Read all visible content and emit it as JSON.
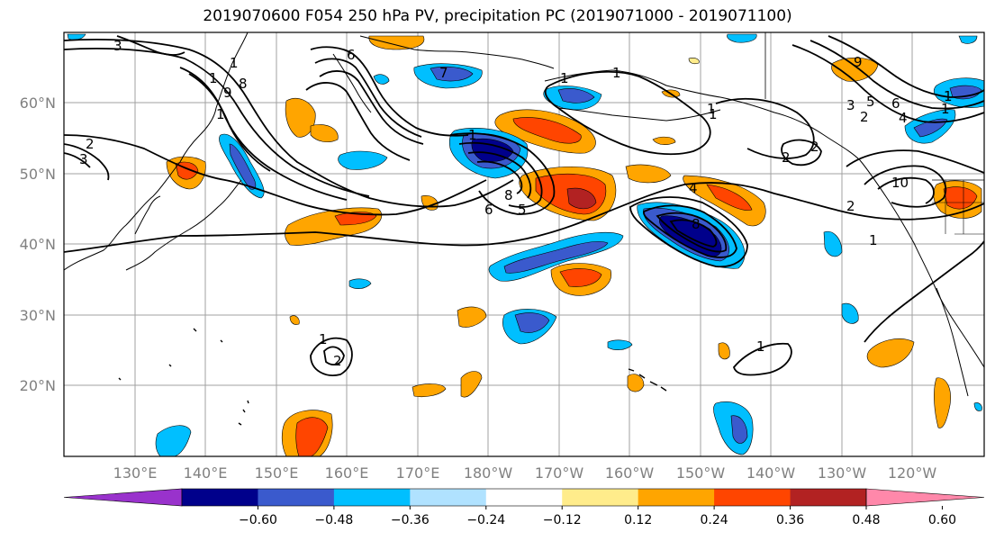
{
  "title": "2019070600 F054 250 hPa PV, precipitation PC (2019071000 - 2019071100)",
  "lat_labels": [
    "60°N",
    "50°N",
    "40°N",
    "30°N",
    "20°N"
  ],
  "lon_labels": [
    "130°E",
    "140°E",
    "150°E",
    "160°E",
    "170°E",
    "180°W",
    "170°W",
    "160°W",
    "150°W",
    "140°W",
    "130°W",
    "120°W"
  ],
  "colorbar": {
    "tick_labels": [
      "−0.60",
      "−0.48",
      "−0.36",
      "−0.24",
      "−0.12",
      "0.12",
      "0.24",
      "0.36",
      "0.48",
      "0.60"
    ],
    "colors": [
      "#9932CC",
      "#00008B",
      "#3A5ACD",
      "#00BFFF",
      "#B0E2FF",
      "#FFFFFF",
      "#FFEC8B",
      "#FFA500",
      "#FF4500",
      "#B22222",
      "#FF88AA"
    ]
  },
  "contour_labels": [
    "3",
    "1",
    "2",
    "3",
    "1",
    "8",
    "9",
    "1",
    "6",
    "8",
    "5",
    "1",
    "6",
    "7",
    "4",
    "1",
    "2",
    "1",
    "1",
    "2",
    "1",
    "8",
    "9",
    "3",
    "5",
    "2",
    "6",
    "4",
    "2",
    "1",
    "1",
    "10",
    "1",
    "1",
    "2",
    "1"
  ]
}
